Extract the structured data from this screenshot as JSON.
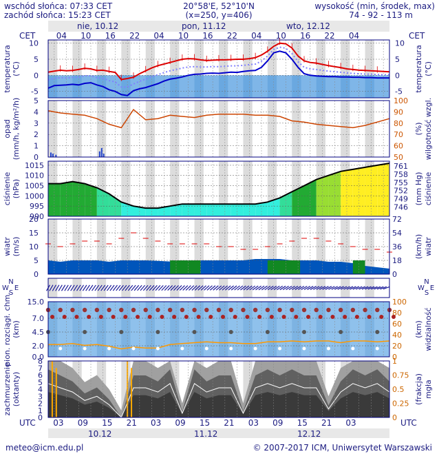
{
  "header": {
    "sunrise": "wschód słońca: 07:33 CET",
    "sunset": "zachód słońca: 15:23 CET",
    "coords": "20°58'E, 52°10'N",
    "grid": "(x=250, y=406)",
    "altitude_label": "wysokość (min, środek, max)",
    "altitude_values": "74 - 92 - 113 m"
  },
  "top_axis": {
    "tz": "CET",
    "ticks": [
      "04",
      "10",
      "16",
      "22",
      "04",
      "10",
      "16",
      "22",
      "04",
      "10",
      "16",
      "22",
      "04"
    ],
    "days": [
      "nie, 10.12",
      "pon, 11.12",
      "wto, 12.12"
    ]
  },
  "bottom_axis": {
    "tz": "UTC",
    "ticks": [
      "03",
      "09",
      "15",
      "21",
      "03",
      "09",
      "15",
      "21",
      "03",
      "09",
      "15",
      "21",
      "03"
    ],
    "dates": [
      "10.12",
      "11.12",
      "12.12"
    ]
  },
  "footer": {
    "email": "meteo@icm.edu.pl",
    "copyright": "© 2007-2017 ICM, Uniwersytet Warszawski"
  },
  "panels": {
    "temp": {
      "left": [
        "temperatura",
        "(°C)"
      ],
      "right": [
        "temperatura",
        "(°C)"
      ]
    },
    "precip": {
      "left": [
        "opad",
        "(mm/h, kg/m²/h)"
      ],
      "right": [
        "(%)",
        "wilgotność wzgl."
      ]
    },
    "pressure": {
      "left": [
        "ciśnienie",
        "(hPa)"
      ],
      "right": [
        "(mm Hg)",
        "ciśnienie"
      ]
    },
    "wind": {
      "left": [
        "wiatr",
        "(m/s)"
      ],
      "right": [
        "(km/h)",
        "wiatr"
      ]
    },
    "visibility": {
      "left": [
        "pion. rozciągł. chm.",
        "(km)"
      ],
      "right": [
        "(km)",
        "widzialność"
      ]
    },
    "cloud": {
      "left": [
        "zachmurzenie",
        "(oktanty)"
      ],
      "right": [
        "(frakcja)",
        "mgła"
      ]
    }
  },
  "colors": {
    "temp": "#dd0000",
    "dew": "#0000cc",
    "humidity": "#cc4400",
    "precip_axis": "#cc5500",
    "wind_line": "#dd0000",
    "vis_line": "#ff9900",
    "frame": "#000080"
  },
  "chart_data": [
    {
      "type": "line",
      "title": "temperatura (°C)",
      "x": [
        0,
        6,
        12,
        18,
        24,
        30,
        36,
        42,
        48,
        54,
        60,
        66,
        72,
        78,
        84,
        90,
        96,
        102,
        108,
        114,
        120,
        126,
        132,
        138,
        144,
        150,
        156,
        162,
        168,
        174,
        180,
        186,
        192,
        198,
        204,
        210,
        216,
        222,
        228,
        234,
        240,
        246,
        252,
        258,
        264,
        270,
        276,
        282,
        288,
        294,
        300,
        306,
        312,
        318,
        324,
        330,
        336
      ],
      "series": [
        {
          "name": "temperatura",
          "values": [
            1.0,
            1.3,
            1.6,
            1.4,
            1.5,
            1.8,
            2.2,
            2.0,
            1.5,
            1.6,
            1.2,
            0.9,
            -1.3,
            -1.0,
            -0.6,
            0.5,
            1.4,
            2.3,
            3.0,
            3.5,
            4.0,
            4.5,
            5.0,
            5.2,
            5.1,
            4.8,
            4.6,
            4.7,
            4.8,
            4.8,
            4.9,
            5.0,
            5.0,
            5.2,
            5.5,
            6.3,
            7.5,
            9.0,
            10.0,
            9.8,
            8.5,
            6.0,
            4.5,
            4.0,
            3.8,
            3.4,
            3.0,
            2.7,
            2.4,
            2.0,
            1.8,
            1.6,
            1.5,
            1.4,
            1.3,
            1.2,
            1.1
          ]
        },
        {
          "name": "temperatura punktu rosy",
          "values": [
            -4.0,
            -3.2,
            -3.1,
            -3.0,
            -2.8,
            -3.0,
            -2.5,
            -2.3,
            -3.0,
            -3.5,
            -4.5,
            -5.0,
            -6.0,
            -6.3,
            -4.8,
            -4.2,
            -3.8,
            -3.2,
            -2.6,
            -1.8,
            -1.2,
            -0.9,
            -0.5,
            0.0,
            0.3,
            0.4,
            0.6,
            0.7,
            0.6,
            0.8,
            1.0,
            0.9,
            1.2,
            1.4,
            1.5,
            2.5,
            4.5,
            7.0,
            7.5,
            7.0,
            5.0,
            2.5,
            0.5,
            0.0,
            -0.2,
            -0.3,
            -0.4,
            -0.4,
            -0.5,
            -0.5,
            -0.6,
            -0.6,
            -0.7,
            -0.7,
            -0.8,
            -0.8,
            -0.8
          ]
        }
      ],
      "ylim": [
        -7,
        11
      ]
    },
    {
      "type": "line",
      "title": "wilgotność wzgl. (%)",
      "x": [
        0,
        12,
        24,
        36,
        48,
        60,
        72,
        84,
        96,
        108,
        120,
        132,
        144,
        156,
        168,
        180,
        192,
        204,
        216,
        228,
        240,
        252,
        264,
        276,
        288,
        300,
        312,
        324,
        336
      ],
      "series": [
        {
          "name": "wilgotność wzgl.",
          "values": [
            91,
            89,
            88,
            87,
            84,
            79,
            76,
            92,
            83,
            84,
            87,
            86,
            85,
            87,
            88,
            88,
            88,
            87,
            87,
            86,
            82,
            81,
            79,
            78,
            77,
            76,
            78,
            81,
            84
          ]
        }
      ],
      "ylim": [
        50,
        100
      ]
    },
    {
      "type": "area",
      "title": "ciśnienie (hPa)",
      "x": [
        0,
        12,
        24,
        36,
        48,
        60,
        72,
        84,
        96,
        108,
        120,
        132,
        144,
        156,
        168,
        180,
        192,
        204,
        216,
        228,
        240,
        252,
        264,
        276,
        288,
        300,
        312,
        324,
        336
      ],
      "series": [
        {
          "name": "ciśnienie",
          "values": [
            1006,
            1006,
            1007,
            1006,
            1004,
            1001,
            997,
            995,
            994,
            994,
            995,
            996,
            996,
            996,
            996,
            996,
            996,
            996,
            997,
            999,
            1002,
            1005,
            1008,
            1010,
            1012,
            1013,
            1014,
            1015,
            1016
          ]
        }
      ],
      "ylim": [
        990,
        1017
      ]
    },
    {
      "type": "area",
      "title": "wiatr (m/s)",
      "x": [
        0,
        12,
        24,
        36,
        48,
        60,
        72,
        84,
        96,
        108,
        120,
        132,
        144,
        156,
        168,
        180,
        192,
        204,
        216,
        228,
        240,
        252,
        264,
        276,
        288,
        300,
        312,
        324,
        336
      ],
      "series": [
        {
          "name": "wiatr",
          "values": [
            5,
            4.5,
            5,
            5,
            5,
            4.5,
            5,
            5,
            5,
            4.8,
            4.6,
            5,
            5,
            5,
            5,
            5,
            5,
            5.5,
            5.5,
            5.5,
            5,
            5,
            5,
            4.5,
            4.5,
            4,
            3,
            2.5,
            2
          ]
        },
        {
          "name": "porywy",
          "values": [
            11,
            10,
            11,
            12,
            12,
            11,
            13,
            15,
            13,
            12,
            11,
            11,
            11,
            11,
            10,
            10,
            9,
            9,
            10,
            11,
            12,
            13,
            13,
            12,
            11,
            10,
            9,
            9,
            8
          ]
        }
      ],
      "ylim": [
        0,
        20
      ]
    },
    {
      "type": "scatter",
      "title": "widzialność (km)",
      "x": [
        0,
        12,
        24,
        36,
        48,
        60,
        72,
        84,
        96,
        108,
        120,
        132,
        144,
        156,
        168,
        180,
        192,
        204,
        216,
        228,
        240,
        252,
        264,
        276,
        288,
        300,
        312,
        324,
        336
      ],
      "series": [
        {
          "name": "widzialność",
          "values": [
            14,
            14,
            15,
            13,
            14,
            12,
            9,
            11,
            10,
            10,
            14,
            15,
            16,
            17,
            16,
            16,
            15,
            15,
            17,
            17,
            18,
            17,
            18,
            18,
            16,
            18,
            18,
            17,
            18
          ]
        }
      ],
      "ylim": [
        0,
        20
      ]
    },
    {
      "type": "area",
      "title": "zachmurzenie (oktanty)",
      "x": [
        0,
        12,
        24,
        36,
        48,
        60,
        72,
        84,
        96,
        108,
        120,
        132,
        144,
        156,
        168,
        180,
        192,
        204,
        216,
        228,
        240,
        252,
        264,
        276,
        288,
        300,
        312,
        324,
        336
      ],
      "series": [
        {
          "name": "zachmurzenie",
          "values": [
            8,
            7,
            6,
            4,
            5,
            3,
            0,
            7,
            7,
            6,
            8,
            1,
            8,
            6,
            7,
            7,
            1,
            7,
            8,
            7,
            8,
            7,
            7,
            2,
            6,
            8,
            7,
            8,
            6
          ]
        }
      ],
      "ylim": [
        0,
        8
      ]
    }
  ]
}
